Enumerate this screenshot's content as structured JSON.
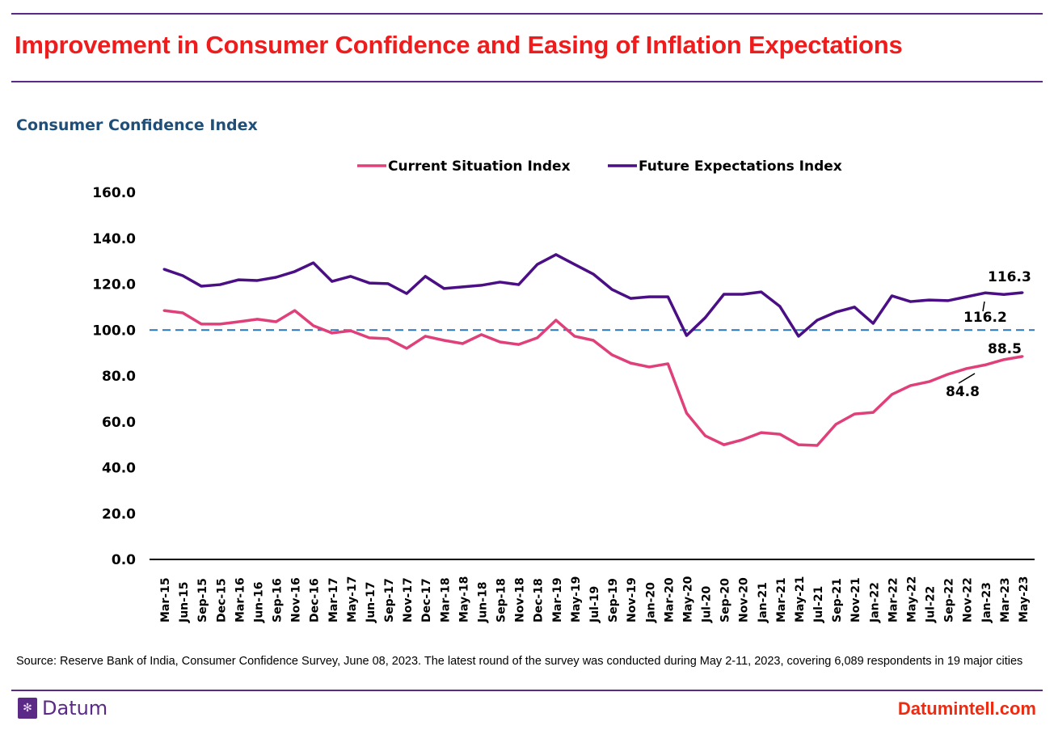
{
  "header": {
    "title": "Improvement in Consumer Confidence and Easing of Inflation Expectations",
    "subtitle": "Consumer Confidence Index"
  },
  "footer": {
    "source": "Source: Reserve Bank of India, Consumer Confidence Survey, June 08, 2023. The latest round of the survey was conducted during May 2-11, 2023, covering 6,089 respondents in 19 major cities",
    "brand": "Datum",
    "website": "Datumintell.com"
  },
  "chart_data": {
    "type": "line",
    "title": "Consumer Confidence Index",
    "ylim": [
      0,
      160
    ],
    "yticks": [
      "0.0",
      "20.0",
      "40.0",
      "60.0",
      "80.0",
      "100.0",
      "120.0",
      "140.0",
      "160.0"
    ],
    "reference_line": {
      "y": 100,
      "style": "dashed",
      "color": "#2e75b6"
    },
    "legend_position": "top",
    "grid": false,
    "categories": [
      "Mar-15",
      "Jun-15",
      "Sep-15",
      "Dec-15",
      "Mar-16",
      "Jun-16",
      "Sep-16",
      "Nov-16",
      "Dec-16",
      "Mar-17",
      "May-17",
      "Jun-17",
      "Sep-17",
      "Nov-17",
      "Dec-17",
      "Mar-18",
      "May-18",
      "Jun-18",
      "Sep-18",
      "Nov-18",
      "Dec-18",
      "Mar-19",
      "May-19",
      "Jul-19",
      "Sep-19",
      "Nov-19",
      "Jan-20",
      "Mar-20",
      "May-20",
      "Jul-20",
      "Sep-20",
      "Nov-20",
      "Jan-21",
      "Mar-21",
      "May-21",
      "Jul-21",
      "Sep-21",
      "Nov-21",
      "Jan-22",
      "Mar-22",
      "May-22",
      "Jul-22",
      "Sep-22",
      "Nov-22",
      "Jan-23",
      "Mar-23",
      "May-23"
    ],
    "series": [
      {
        "name": "Current Situation Index",
        "color": "#e0407a",
        "values": [
          108.5,
          107.5,
          102.6,
          102.6,
          103.6,
          104.7,
          103.6,
          108.5,
          101.9,
          98.7,
          99.7,
          96.6,
          96.2,
          92.0,
          97.3,
          95.5,
          94.1,
          98.0,
          94.8,
          93.7,
          96.6,
          104.3,
          97.3,
          95.5,
          89.2,
          85.6,
          83.9,
          85.3,
          63.8,
          53.9,
          50.0,
          52.2,
          55.3,
          54.6,
          50.0,
          49.7,
          58.9,
          63.4,
          64.1,
          71.9,
          75.8,
          77.5,
          80.7,
          83.2,
          84.8,
          87.1,
          88.5
        ]
      },
      {
        "name": "Future Expectations Index",
        "color": "#4b0f85",
        "values": [
          126.5,
          123.7,
          119.1,
          119.8,
          121.9,
          121.6,
          123.0,
          125.5,
          129.3,
          121.2,
          123.4,
          120.5,
          120.2,
          115.9,
          123.4,
          118.1,
          118.8,
          119.5,
          120.9,
          119.8,
          128.6,
          132.9,
          128.6,
          124.4,
          117.7,
          113.8,
          114.5,
          114.5,
          97.6,
          105.4,
          115.6,
          115.6,
          116.6,
          110.3,
          97.3,
          104.3,
          107.8,
          110.0,
          102.9,
          114.9,
          112.4,
          113.1,
          112.8,
          114.5,
          116.2,
          115.5,
          116.3
        ]
      }
    ],
    "data_labels": [
      {
        "series": "Future Expectations Index",
        "category": "Jan-23",
        "text": "116.2"
      },
      {
        "series": "Future Expectations Index",
        "category": "May-23",
        "text": "116.3"
      },
      {
        "series": "Current Situation Index",
        "category": "Jan-23",
        "text": "84.8"
      },
      {
        "series": "Current Situation Index",
        "category": "May-23",
        "text": "88.5"
      }
    ]
  }
}
